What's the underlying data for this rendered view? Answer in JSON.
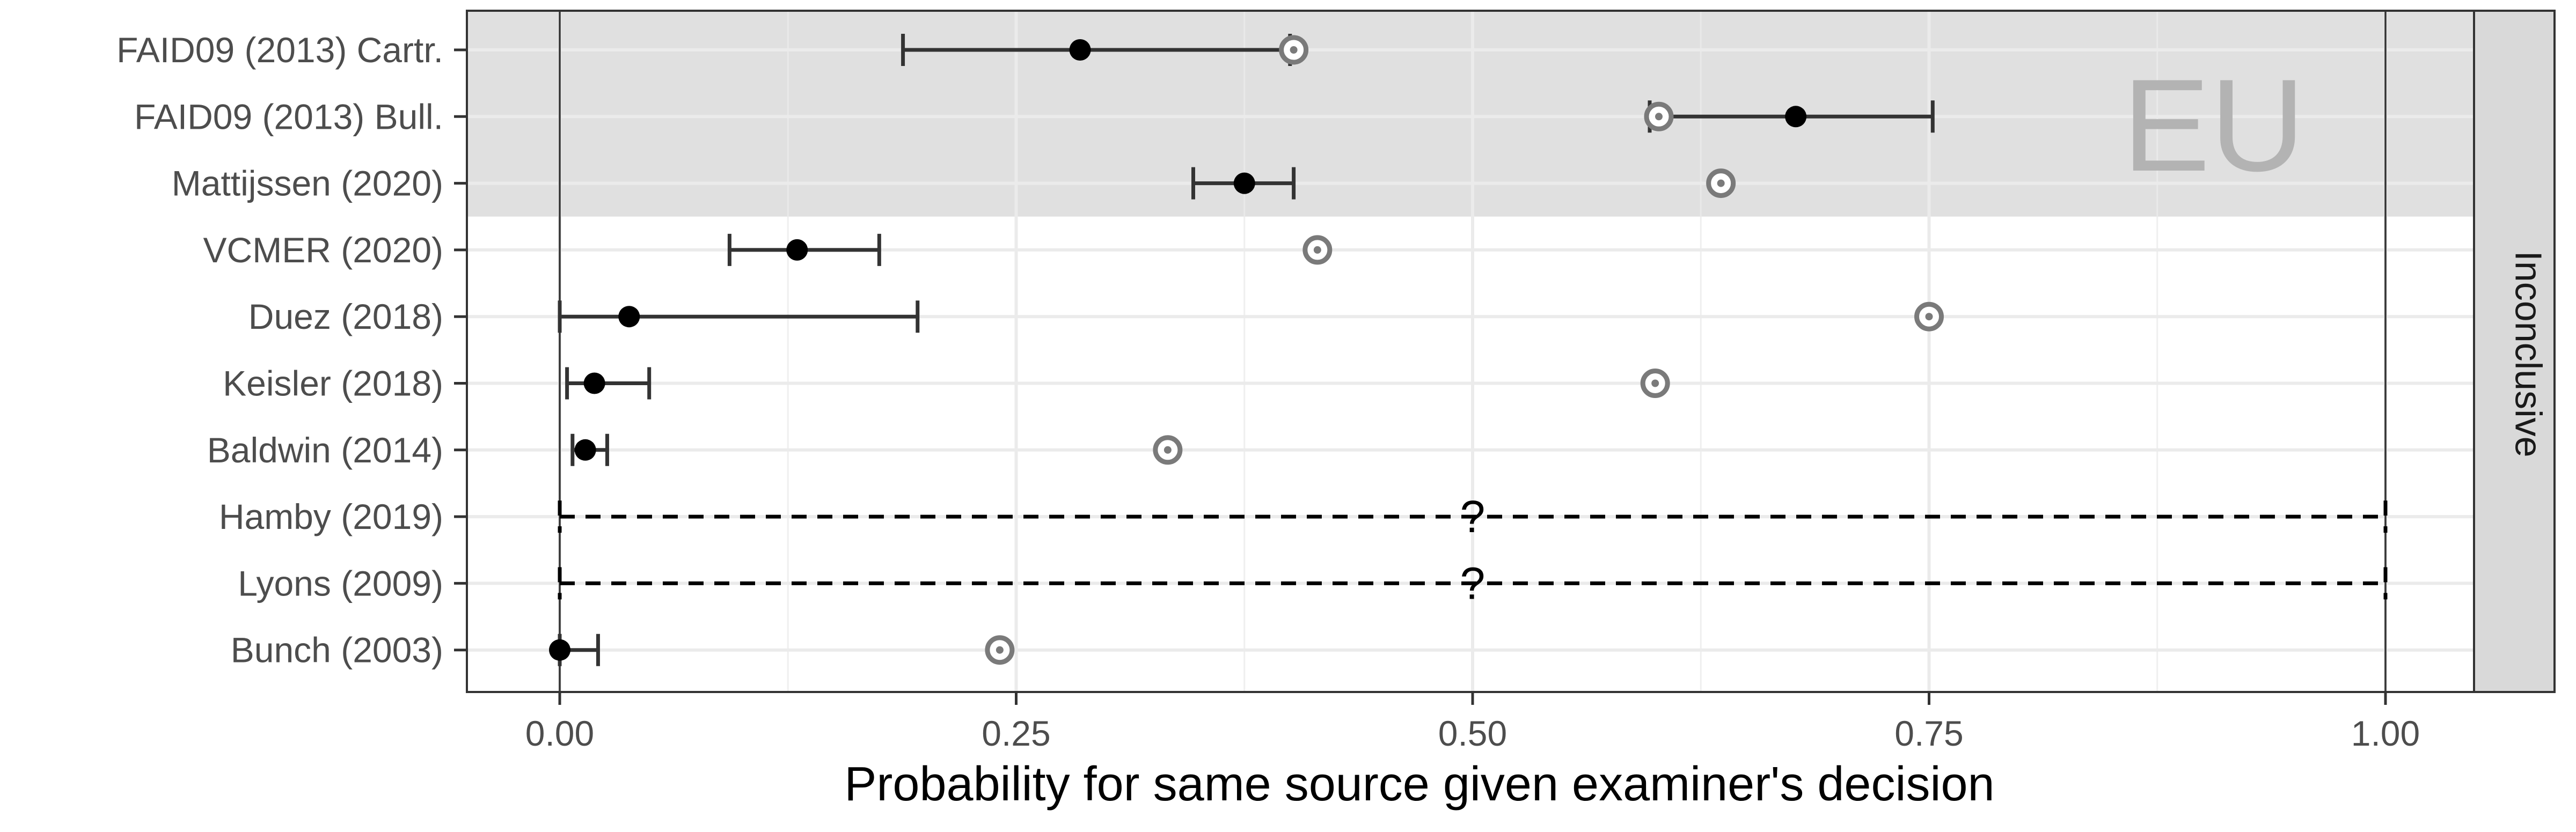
{
  "chart_data": {
    "type": "scatter",
    "xlabel": "Probability for same source given examiner's decision",
    "xlim": [
      -0.1,
      2.1
    ],
    "x_ticks": [
      "0.00",
      "0.25",
      "0.50",
      "0.75",
      "1.00"
    ],
    "x_tick_values": [
      0,
      0.25,
      0.5,
      0.75,
      1.0
    ],
    "facet_label": "Inconclusive",
    "region_label": "EU",
    "region_rows": [
      "FAID09 (2013) Cartr.",
      "FAID09 (2013) Bull.",
      "Mattijssen (2020)"
    ],
    "unknown_marker": "?",
    "studies": [
      {
        "label": "FAID09 (2013) Cartr.",
        "estimate": 0.285,
        "lower": 0.188,
        "upper": 0.4,
        "ring": 0.402
      },
      {
        "label": "FAID09 (2013) Bull.",
        "estimate": 0.677,
        "lower": 0.597,
        "upper": 0.752,
        "ring": 0.602
      },
      {
        "label": "Mattijssen (2020)",
        "estimate": 0.375,
        "lower": 0.347,
        "upper": 0.402,
        "ring": 0.636
      },
      {
        "label": "VCMER (2020)",
        "estimate": 0.13,
        "lower": 0.093,
        "upper": 0.175,
        "ring": 0.415
      },
      {
        "label": "Duez (2018)",
        "estimate": 0.038,
        "lower": 0.0,
        "upper": 0.196,
        "ring": 0.75
      },
      {
        "label": "Keisler (2018)",
        "estimate": 0.019,
        "lower": 0.004,
        "upper": 0.049,
        "ring": 0.6
      },
      {
        "label": "Baldwin (2014)",
        "estimate": 0.014,
        "lower": 0.007,
        "upper": 0.026,
        "ring": 0.333
      },
      {
        "label": "Hamby (2019)",
        "estimate": null,
        "lower": 0.0,
        "upper": 1.0,
        "ring": null,
        "unknown": true
      },
      {
        "label": "Lyons (2009)",
        "estimate": null,
        "lower": 0.0,
        "upper": 1.0,
        "ring": null,
        "unknown": true
      },
      {
        "label": "Bunch (2003)",
        "estimate": 0.0,
        "lower": 0.0,
        "upper": 0.021,
        "ring": 0.241
      }
    ],
    "colors": {
      "panel_border": "#333333",
      "region_fill": "#e0e0e0",
      "strip_fill": "#d9d9d9",
      "grid_major": "#ebebeb",
      "point": "#000000",
      "interval": "#333333",
      "ring": "#7a7a7a"
    }
  }
}
